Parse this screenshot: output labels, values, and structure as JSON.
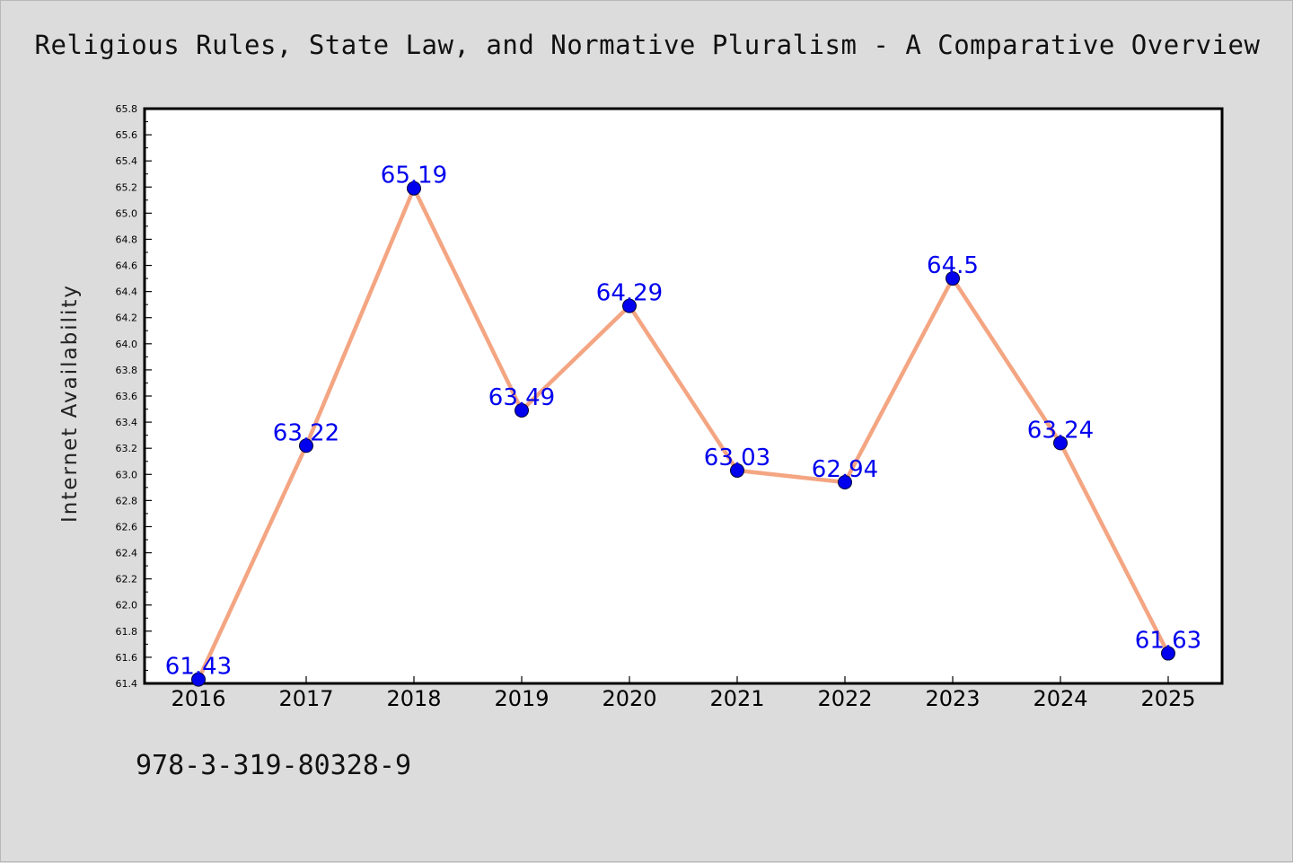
{
  "chart_data": {
    "type": "line",
    "title": "Religious Rules, State Law, and Normative Pluralism - A Comparative Overview",
    "xlabel": "",
    "ylabel": "Internet Availability",
    "x": [
      "2016",
      "2017",
      "2018",
      "2019",
      "2020",
      "2021",
      "2022",
      "2023",
      "2024",
      "2025"
    ],
    "series": [
      {
        "values": [
          61.43,
          63.22,
          65.19,
          63.49,
          64.29,
          63.03,
          62.94,
          64.5,
          63.24,
          61.63
        ]
      }
    ],
    "data_labels": [
      "61.43",
      "63.22",
      "65.19",
      "63.49",
      "64.29",
      "63.03",
      "62.94",
      "64.5",
      "63.24",
      "61.63"
    ],
    "ylim": [
      61.4,
      65.8
    ],
    "yticks": [
      "61.4",
      "61.6",
      "61.8",
      "62.0",
      "62.2",
      "62.4",
      "62.6",
      "62.8",
      "63.0",
      "63.2",
      "63.4",
      "63.6",
      "63.8",
      "64.0",
      "64.2",
      "64.4",
      "64.6",
      "64.8",
      "65.0",
      "65.2",
      "65.4",
      "65.6",
      "65.8"
    ],
    "grid": false,
    "legend": "none",
    "colors": {
      "line": "#f4a582",
      "marker": "#0000ee",
      "label": "#0000ee",
      "background": "#dcdcdc",
      "plot_background": "#ffffff"
    }
  },
  "footer": {
    "isbn": "978-3-319-80328-9"
  }
}
